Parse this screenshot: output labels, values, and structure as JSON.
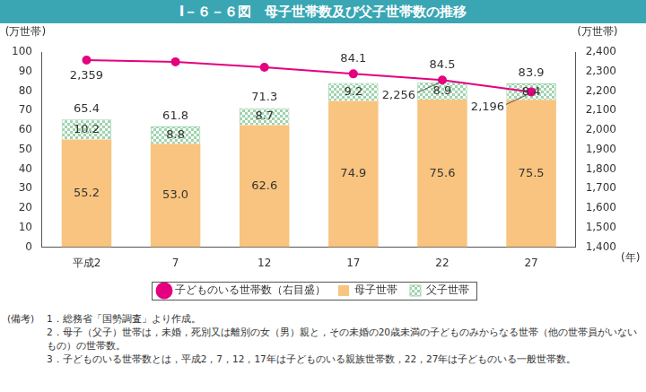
{
  "chart_data": {
    "type": "bar",
    "title": "Ⅰ－６－６図　母子世帯数及び父子世帯数の推移",
    "categories": [
      "平成2",
      "7",
      "12",
      "17",
      "22",
      "27"
    ],
    "x_label": "(年)",
    "y_label": "(万世帯)",
    "y2_label": "(万世帯)",
    "series": [
      {
        "name": "母子世帯",
        "color": "#f9c47f",
        "values": [
          55.2,
          53.0,
          62.6,
          74.9,
          75.6,
          75.5
        ],
        "value_labels": [
          "55.2",
          "53.0",
          "62.6",
          "74.9",
          "75.6",
          "75.5"
        ]
      },
      {
        "name": "父子世帯",
        "color": "#9fd3ae",
        "values": [
          10.2,
          8.8,
          8.7,
          9.2,
          8.9,
          8.4
        ]
      },
      {
        "name": "子どものいる世帯数（右目盛）",
        "type": "line",
        "axis": "y2",
        "color": "#e4007f",
        "marker": "circle",
        "values": [
          2359,
          2350,
          2322,
          2288,
          2256,
          2196
        ],
        "value_labels": [
          "2,359",
          null,
          null,
          null,
          "2,256",
          "2,196"
        ]
      }
    ],
    "totals": [
      65.4,
      61.8,
      71.3,
      84.1,
      84.5,
      83.9
    ],
    "stacked": true,
    "data_labels": true,
    "grid": false,
    "legend": "bottom",
    "ylim": [
      0,
      100
    ],
    "yticks": [
      0,
      10,
      20,
      30,
      40,
      50,
      60,
      70,
      80,
      90,
      100
    ],
    "y2lim": [
      1400,
      2400
    ],
    "y2ticks": [
      {
        "value": 1400,
        "label": "1,400"
      },
      {
        "value": 1500,
        "label": "1,500"
      },
      {
        "value": 1600,
        "label": "1,600"
      },
      {
        "value": 1700,
        "label": "1,700"
      },
      {
        "value": 1800,
        "label": "1,800"
      },
      {
        "value": 1900,
        "label": "1,900"
      },
      {
        "value": 2000,
        "label": "2,000"
      },
      {
        "value": 2100,
        "label": "2,100"
      },
      {
        "value": 2200,
        "label": "2,200"
      },
      {
        "value": 2300,
        "label": "2,300"
      },
      {
        "value": 2400,
        "label": "2,400"
      }
    ],
    "notes": {
      "label": "(備考)",
      "items": [
        "1．総務省「国勢調査」より作成。",
        "2．母子（父子）世帯は，未婚，死別又は離別の女（男）親と，その未婚の20歳未満の子どものみからなる世帯（他の世帯員がいないもの）の世帯数。",
        "3．子どものいる世帯数とは，平成2，7，12，17年は子どものいる親族世帯数，22，27年は子どものいる一般世帯数。"
      ]
    }
  }
}
